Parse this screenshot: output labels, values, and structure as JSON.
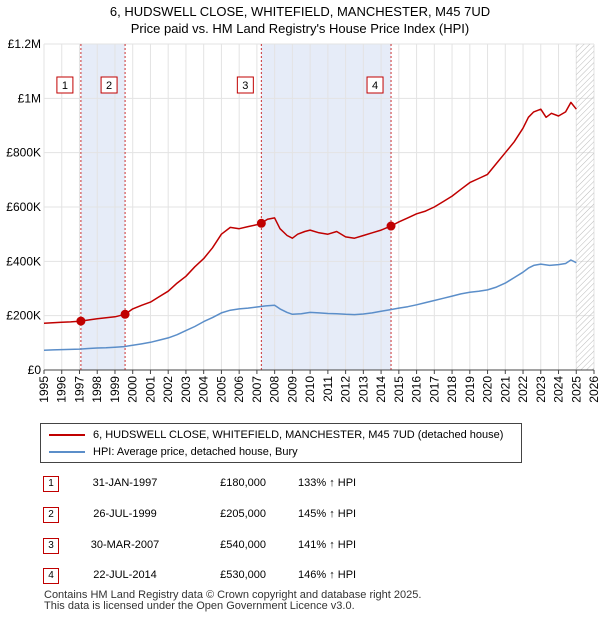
{
  "chart_data": {
    "type": "line",
    "title": "6, HUDSWELL CLOSE, WHITEFIELD, MANCHESTER, M45 7UD",
    "subtitle": "Price paid vs. HM Land Registry's House Price Index (HPI)",
    "xlabel": "",
    "ylabel": "",
    "xlim": [
      1995,
      2026
    ],
    "ylim": [
      0,
      1200000
    ],
    "x_ticks": [
      "1995",
      "1996",
      "1997",
      "1998",
      "1999",
      "2000",
      "2001",
      "2002",
      "2003",
      "2004",
      "2005",
      "2006",
      "2007",
      "2008",
      "2009",
      "2010",
      "2011",
      "2012",
      "2013",
      "2014",
      "2015",
      "2016",
      "2017",
      "2018",
      "2019",
      "2020",
      "2021",
      "2022",
      "2023",
      "2024",
      "2025",
      "2026"
    ],
    "y_ticks": [
      {
        "value": 0,
        "label": "£0"
      },
      {
        "value": 200000,
        "label": "£200K"
      },
      {
        "value": 400000,
        "label": "£400K"
      },
      {
        "value": 600000,
        "label": "£600K"
      },
      {
        "value": 800000,
        "label": "£800K"
      },
      {
        "value": 1000000,
        "label": "£1M"
      },
      {
        "value": 1200000,
        "label": "£1.2M"
      }
    ],
    "grid": true,
    "shaded_ranges": [
      [
        1997.08,
        1999.57
      ],
      [
        2007.25,
        2014.56
      ]
    ],
    "future_hatch_from": 2025.0,
    "series": [
      {
        "name": "6, HUDSWELL CLOSE, WHITEFIELD, MANCHESTER, M45 7UD (detached house)",
        "color": "#c00000",
        "x": [
          1995.0,
          1995.5,
          1996.0,
          1996.5,
          1997.08,
          1997.6,
          1998.0,
          1998.5,
          1999.0,
          1999.57,
          2000.0,
          2000.5,
          2001.0,
          2001.5,
          2002.0,
          2002.5,
          2003.0,
          2003.5,
          2004.0,
          2004.5,
          2005.0,
          2005.5,
          2006.0,
          2006.5,
          2007.0,
          2007.25,
          2007.6,
          2008.0,
          2008.3,
          2008.7,
          2009.0,
          2009.3,
          2009.7,
          2010.0,
          2010.5,
          2011.0,
          2011.5,
          2012.0,
          2012.5,
          2013.0,
          2013.5,
          2014.0,
          2014.56,
          2015.0,
          2015.5,
          2016.0,
          2016.5,
          2017.0,
          2017.5,
          2018.0,
          2018.5,
          2019.0,
          2019.5,
          2020.0,
          2020.5,
          2021.0,
          2021.5,
          2022.0,
          2022.3,
          2022.6,
          2023.0,
          2023.3,
          2023.6,
          2024.0,
          2024.4,
          2024.7,
          2025.0
        ],
        "values": [
          172000,
          174000,
          176000,
          177000,
          180000,
          185000,
          189000,
          192000,
          196000,
          205000,
          225000,
          238000,
          250000,
          270000,
          290000,
          320000,
          345000,
          380000,
          410000,
          450000,
          500000,
          525000,
          520000,
          528000,
          535000,
          540000,
          555000,
          560000,
          520000,
          495000,
          485000,
          500000,
          510000,
          515000,
          505000,
          500000,
          510000,
          490000,
          485000,
          495000,
          505000,
          515000,
          530000,
          545000,
          560000,
          575000,
          585000,
          600000,
          620000,
          640000,
          665000,
          690000,
          705000,
          720000,
          760000,
          800000,
          840000,
          890000,
          930000,
          950000,
          960000,
          930000,
          945000,
          935000,
          950000,
          985000,
          960000
        ]
      },
      {
        "name": "HPI: Average price, detached house, Bury",
        "color": "#5b8ec9",
        "x": [
          1995.0,
          1995.5,
          1996.0,
          1996.5,
          1997.0,
          1997.5,
          1998.0,
          1998.5,
          1999.0,
          1999.5,
          2000.0,
          2000.5,
          2001.0,
          2001.5,
          2002.0,
          2002.5,
          2003.0,
          2003.5,
          2004.0,
          2004.5,
          2005.0,
          2005.5,
          2006.0,
          2006.5,
          2007.0,
          2007.5,
          2008.0,
          2008.3,
          2008.7,
          2009.0,
          2009.5,
          2010.0,
          2010.5,
          2011.0,
          2011.5,
          2012.0,
          2012.5,
          2013.0,
          2013.5,
          2014.0,
          2014.5,
          2015.0,
          2015.5,
          2016.0,
          2016.5,
          2017.0,
          2017.5,
          2018.0,
          2018.5,
          2019.0,
          2019.5,
          2020.0,
          2020.5,
          2021.0,
          2021.5,
          2022.0,
          2022.3,
          2022.6,
          2023.0,
          2023.5,
          2024.0,
          2024.4,
          2024.7,
          2025.0
        ],
        "values": [
          73000,
          74000,
          75000,
          76000,
          77000,
          79000,
          81000,
          82000,
          84000,
          86000,
          91000,
          96000,
          102000,
          110000,
          118000,
          130000,
          145000,
          160000,
          178000,
          193000,
          210000,
          220000,
          225000,
          228000,
          232000,
          236000,
          238000,
          225000,
          212000,
          205000,
          207000,
          212000,
          210000,
          208000,
          207000,
          205000,
          204000,
          206000,
          210000,
          216000,
          222000,
          228000,
          233000,
          240000,
          248000,
          256000,
          264000,
          272000,
          280000,
          286000,
          290000,
          295000,
          305000,
          320000,
          340000,
          360000,
          375000,
          385000,
          390000,
          385000,
          388000,
          392000,
          405000,
          395000
        ]
      }
    ],
    "markers": [
      {
        "label": "1",
        "x": 1997.08,
        "value": 180000
      },
      {
        "label": "2",
        "x": 1999.57,
        "value": 205000
      },
      {
        "label": "3",
        "x": 2007.25,
        "value": 540000
      },
      {
        "label": "4",
        "x": 2014.56,
        "value": 530000
      }
    ]
  },
  "legend": {
    "items": [
      {
        "label": "6, HUDSWELL CLOSE, WHITEFIELD, MANCHESTER, M45 7UD (detached house)",
        "color": "#c00000"
      },
      {
        "label": "HPI: Average price, detached house, Bury",
        "color": "#5b8ec9"
      }
    ]
  },
  "sales": [
    {
      "num": "1",
      "date": "31-JAN-1997",
      "price": "£180,000",
      "hpi": "133% ↑ HPI"
    },
    {
      "num": "2",
      "date": "26-JUL-1999",
      "price": "£205,000",
      "hpi": "145% ↑ HPI"
    },
    {
      "num": "3",
      "date": "30-MAR-2007",
      "price": "£540,000",
      "hpi": "141% ↑ HPI"
    },
    {
      "num": "4",
      "date": "22-JUL-2014",
      "price": "£530,000",
      "hpi": "146% ↑ HPI"
    }
  ],
  "footer": {
    "line1": "Contains HM Land Registry data © Crown copyright and database right 2025.",
    "line2": "This data is licensed under the Open Government Licence v3.0."
  }
}
